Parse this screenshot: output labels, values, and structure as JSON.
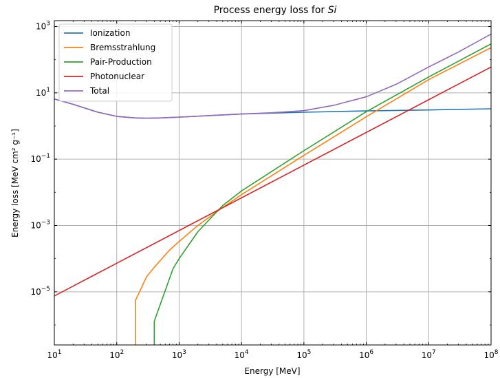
{
  "chart_data": {
    "type": "line",
    "title": "Process energy loss for ",
    "title_material": "Si",
    "xlabel": "Energy [MeV]",
    "ylabel": "Energy loss [MeV cm² g⁻¹]",
    "xscale": "log",
    "yscale": "log",
    "xlim": [
      10,
      100000000
    ],
    "ylim": [
      2.5e-07,
      1500
    ],
    "grid": true,
    "legend_position": "top-left",
    "x_ticks": [
      {
        "value": 10,
        "base": "10",
        "exp": "1"
      },
      {
        "value": 100,
        "base": "10",
        "exp": "2"
      },
      {
        "value": 1000,
        "base": "10",
        "exp": "3"
      },
      {
        "value": 10000,
        "base": "10",
        "exp": "4"
      },
      {
        "value": 100000,
        "base": "10",
        "exp": "5"
      },
      {
        "value": 1000000,
        "base": "10",
        "exp": "6"
      },
      {
        "value": 10000000,
        "base": "10",
        "exp": "7"
      },
      {
        "value": 100000000,
        "base": "10",
        "exp": "8"
      }
    ],
    "y_ticks": [
      {
        "value": 1e-05,
        "base": "10",
        "exp": "−5"
      },
      {
        "value": 0.001,
        "base": "10",
        "exp": "−3"
      },
      {
        "value": 0.1,
        "base": "10",
        "exp": "−1"
      },
      {
        "value": 10,
        "base": "10",
        "exp": "1"
      },
      {
        "value": 1000,
        "base": "10",
        "exp": "3"
      }
    ],
    "series": [
      {
        "name": "Ionization",
        "color": "#1f77b4",
        "points": [
          [
            10,
            6.5
          ],
          [
            20,
            4.5
          ],
          [
            50,
            2.6
          ],
          [
            100,
            1.95
          ],
          [
            200,
            1.75
          ],
          [
            300,
            1.72
          ],
          [
            500,
            1.75
          ],
          [
            1000,
            1.85
          ],
          [
            3000,
            2.05
          ],
          [
            10000,
            2.3
          ],
          [
            100000,
            2.6
          ],
          [
            1000000,
            2.85
          ],
          [
            10000000,
            3.05
          ],
          [
            100000000,
            3.3
          ]
        ]
      },
      {
        "name": "Bremsstrahlung",
        "color": "#ff7f0e",
        "points": [
          [
            200,
            2e-07
          ],
          [
            200,
            5.5e-06
          ],
          [
            300,
            2.8e-05
          ],
          [
            400,
            5.5e-05
          ],
          [
            700,
            0.00018
          ],
          [
            1000,
            0.00033
          ],
          [
            2000,
            0.001
          ],
          [
            5000,
            0.0035
          ],
          [
            10000,
            0.0085
          ],
          [
            100000,
            0.13
          ],
          [
            1000000,
            1.9
          ],
          [
            10000000,
            25
          ],
          [
            100000000,
            230
          ]
        ]
      },
      {
        "name": "Pair-Production",
        "color": "#2ca02c",
        "points": [
          [
            400,
            2e-07
          ],
          [
            400,
            1.3e-06
          ],
          [
            800,
            5e-05
          ],
          [
            1000,
            0.0001
          ],
          [
            2000,
            0.00065
          ],
          [
            5000,
            0.004
          ],
          [
            10000,
            0.011
          ],
          [
            100000,
            0.18
          ],
          [
            1000000,
            2.7
          ],
          [
            10000000,
            30
          ],
          [
            100000000,
            300
          ]
        ]
      },
      {
        "name": "Photonuclear",
        "color": "#d62728",
        "points": [
          [
            10,
            7.5e-06
          ],
          [
            100000000,
            60
          ]
        ]
      },
      {
        "name": "Total",
        "color": "#9467bd",
        "points": [
          [
            10,
            6.5
          ],
          [
            20,
            4.5
          ],
          [
            50,
            2.6
          ],
          [
            100,
            1.95
          ],
          [
            200,
            1.75
          ],
          [
            300,
            1.72
          ],
          [
            500,
            1.75
          ],
          [
            1000,
            1.85
          ],
          [
            3000,
            2.05
          ],
          [
            10000,
            2.3
          ],
          [
            30000,
            2.5
          ],
          [
            100000,
            2.9
          ],
          [
            300000,
            4.2
          ],
          [
            1000000,
            7.6
          ],
          [
            3000000,
            18
          ],
          [
            10000000,
            60
          ],
          [
            30000000,
            170
          ],
          [
            100000000,
            590
          ]
        ]
      }
    ]
  }
}
